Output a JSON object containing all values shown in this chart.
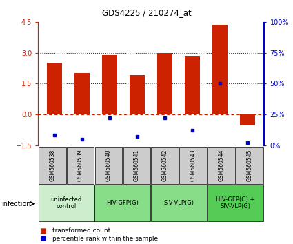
{
  "title": "GDS4225 / 210274_at",
  "samples": [
    "GSM560538",
    "GSM560539",
    "GSM560540",
    "GSM560541",
    "GSM560542",
    "GSM560543",
    "GSM560544",
    "GSM560545"
  ],
  "transformed_counts": [
    2.5,
    2.0,
    2.9,
    1.9,
    3.0,
    2.85,
    4.35,
    -0.55
  ],
  "percentile_ranks": [
    8,
    5,
    22,
    7,
    22,
    12,
    50,
    2
  ],
  "ylim_left": [
    -1.5,
    4.5
  ],
  "ylim_right": [
    0,
    100
  ],
  "yticks_left": [
    -1.5,
    0,
    1.5,
    3.0,
    4.5
  ],
  "yticks_right": [
    0,
    25,
    50,
    75,
    100
  ],
  "ytick_right_labels": [
    "0%",
    "25%",
    "50%",
    "75%",
    "100%"
  ],
  "bar_color": "#cc2200",
  "dot_color": "#0000cc",
  "groups": [
    {
      "label": "uninfected\ncontrol",
      "start": 0,
      "end": 2,
      "color": "#cceecc"
    },
    {
      "label": "HIV-GFP(G)",
      "start": 2,
      "end": 4,
      "color": "#88dd88"
    },
    {
      "label": "SIV-VLP(G)",
      "start": 4,
      "end": 6,
      "color": "#88dd88"
    },
    {
      "label": "HIV-GFP(G) +\nSIV-VLP(G)",
      "start": 6,
      "end": 8,
      "color": "#55cc55"
    }
  ],
  "infection_label": "infection",
  "legend_items": [
    {
      "color": "#cc2200",
      "label": "transformed count"
    },
    {
      "color": "#0000cc",
      "label": "percentile rank within the sample"
    }
  ],
  "bar_width": 0.55,
  "sample_box_color": "#cccccc",
  "hline_zero_color": "#cc2200",
  "hline_dotted_color": "#333333"
}
